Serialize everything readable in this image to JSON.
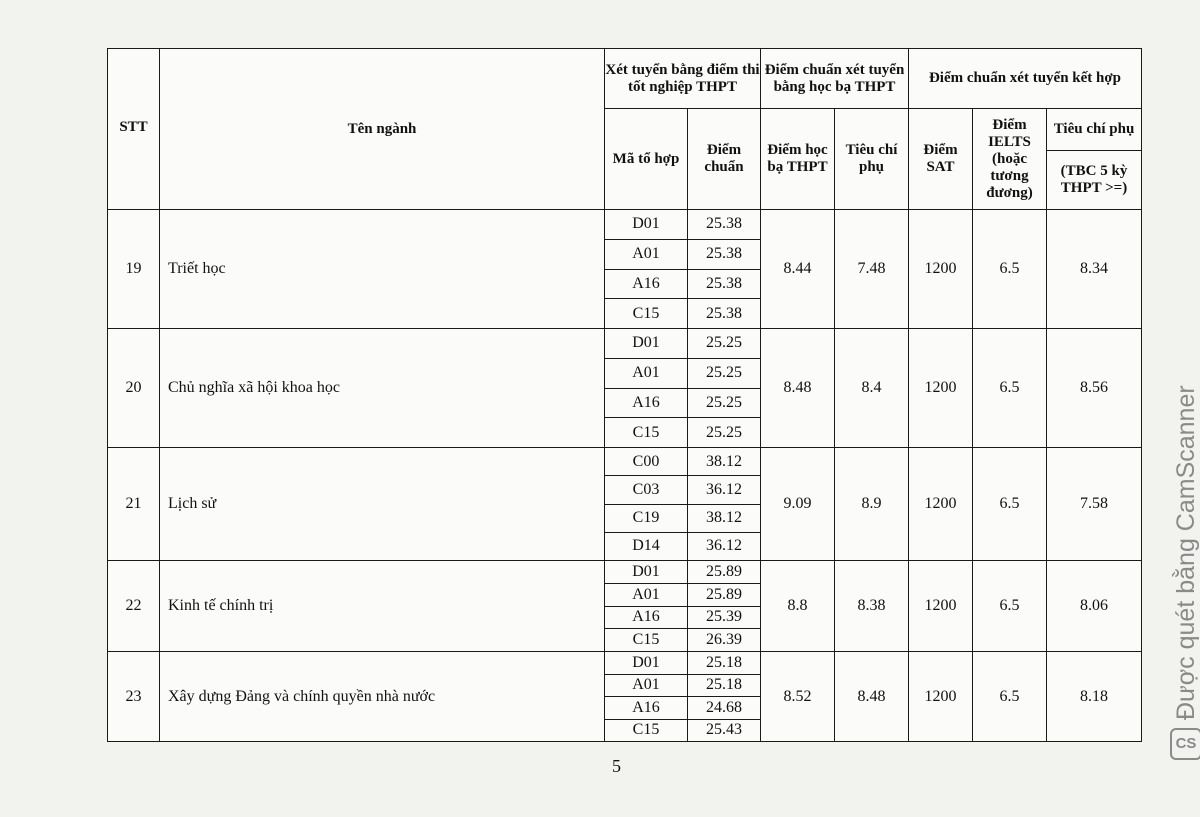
{
  "header": {
    "stt": "STT",
    "ten_nganh": "Tên ngành",
    "group_thpt": "Xét tuyển bằng điểm thi tốt nghiệp THPT",
    "group_hocba": "Điểm chuẩn xét tuyển bằng học bạ THPT",
    "group_kethop": "Điểm chuẩn xét tuyển kết hợp",
    "ma_to_hop": "Mã tổ hợp",
    "diem_chuan": "Điểm chuẩn",
    "diem_hoc_ba": "Điểm học bạ THPT",
    "tieu_chi_phu": "Tiêu chí phụ",
    "diem_sat": "Điểm SAT",
    "diem_ielts": "Điểm IELTS (hoặc tương đương)",
    "tieu_chi_phu_2": "Tiêu chí phụ",
    "tbc": "(TBC 5 kỳ THPT >=)"
  },
  "rows": [
    {
      "stt": "19",
      "name": "Triết học",
      "combos": [
        [
          "D01",
          "25.38"
        ],
        [
          "A01",
          "25.38"
        ],
        [
          "A16",
          "25.38"
        ],
        [
          "C15",
          "25.38"
        ]
      ],
      "hocba": "8.44",
      "tcp": "7.48",
      "sat": "1200",
      "ielts": "6.5",
      "tbc": "8.34"
    },
    {
      "stt": "20",
      "name": "Chủ nghĩa xã hội khoa học",
      "combos": [
        [
          "D01",
          "25.25"
        ],
        [
          "A01",
          "25.25"
        ],
        [
          "A16",
          "25.25"
        ],
        [
          "C15",
          "25.25"
        ]
      ],
      "hocba": "8.48",
      "tcp": "8.4",
      "sat": "1200",
      "ielts": "6.5",
      "tbc": "8.56"
    },
    {
      "stt": "21",
      "name": "Lịch sử",
      "combos": [
        [
          "C00",
          "38.12"
        ],
        [
          "C03",
          "36.12"
        ],
        [
          "C19",
          "38.12"
        ],
        [
          "D14",
          "36.12"
        ]
      ],
      "hocba": "9.09",
      "tcp": "8.9",
      "sat": "1200",
      "ielts": "6.5",
      "tbc": "7.58"
    },
    {
      "stt": "22",
      "name": "Kinh tế chính trị",
      "combos": [
        [
          "D01",
          "25.89"
        ],
        [
          "A01",
          "25.89"
        ],
        [
          "A16",
          "25.39"
        ],
        [
          "C15",
          "26.39"
        ]
      ],
      "hocba": "8.8",
      "tcp": "8.38",
      "sat": "1200",
      "ielts": "6.5",
      "tbc": "8.06"
    },
    {
      "stt": "23",
      "name": "Xây dựng Đảng và chính quyền nhà nước",
      "combos": [
        [
          "D01",
          "25.18"
        ],
        [
          "A01",
          "25.18"
        ],
        [
          "A16",
          "24.68"
        ],
        [
          "C15",
          "25.43"
        ]
      ],
      "hocba": "8.52",
      "tcp": "8.48",
      "sat": "1200",
      "ielts": "6.5",
      "tbc": "8.18"
    }
  ],
  "page_number": "5",
  "watermark": {
    "logo": "CS",
    "text": "Được quét bằng CamScanner"
  }
}
